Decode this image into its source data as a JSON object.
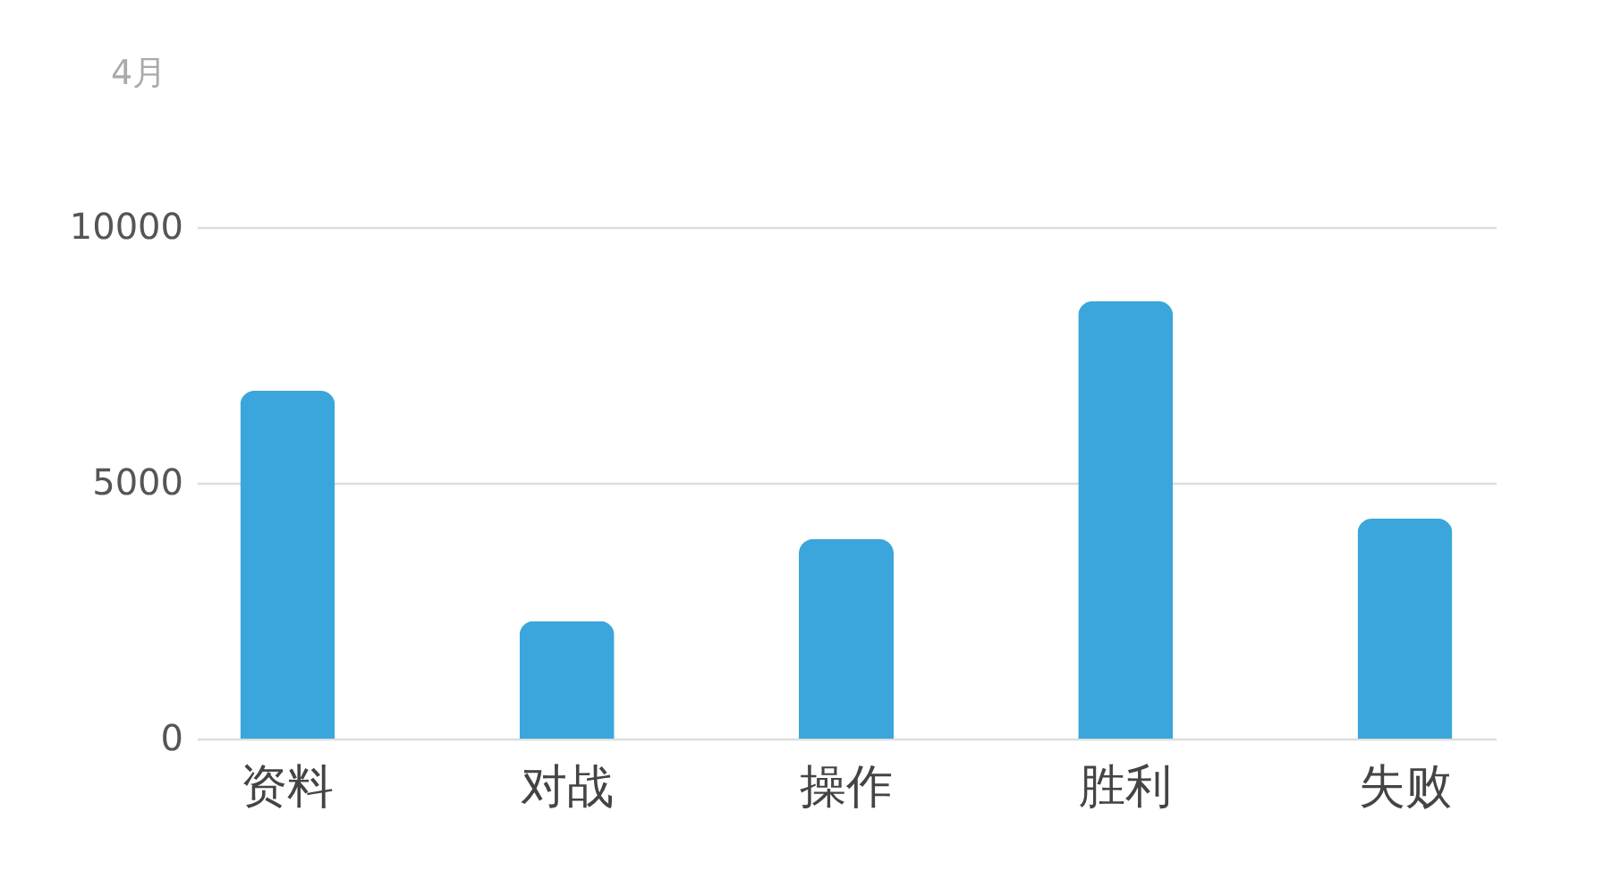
{
  "chart_data": {
    "type": "bar",
    "title": "4月",
    "categories": [
      "资料",
      "对战",
      "操作",
      "胜利",
      "失败"
    ],
    "values": [
      6800,
      2300,
      3900,
      8550,
      4300
    ],
    "color": "#3aa6db",
    "ylim": [
      0,
      10000
    ],
    "yticks": [
      0,
      5000,
      10000
    ],
    "grid": "y"
  }
}
